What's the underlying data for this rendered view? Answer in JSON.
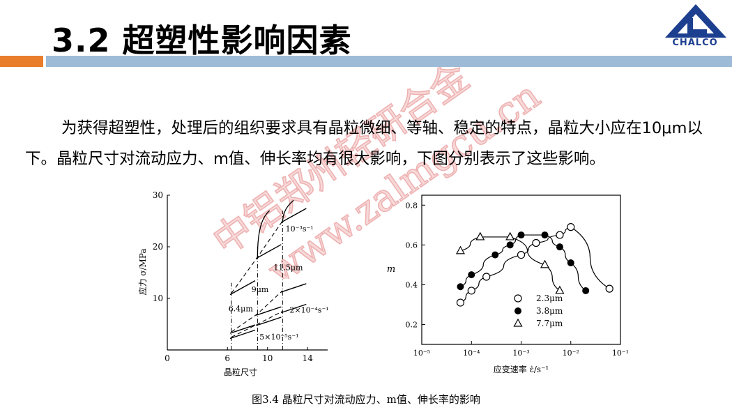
{
  "header": {
    "title": "3.2 超塑性影响因素",
    "logo_text": "CHALCO",
    "accent_orange": "#e87d2c",
    "accent_blue": "#9dbbd6"
  },
  "watermark": {
    "line1": "中铝郑州轻研合金",
    "line2": "www.zalmgcu.cn",
    "color": "#f0b4b4"
  },
  "body": {
    "paragraph": "为获得超塑性，处理后的组织要求具有晶粒微细、等轴、稳定的特点，晶粒大小应在10μm以下。晶粒尺寸对流动应力、m值、伸长率均有很大影响，下图分别表示了这些影响。"
  },
  "figure": {
    "caption": "图3.4 晶粒尺寸对流动应力、m值、伸长率的影响"
  },
  "chart_data": [
    {
      "type": "line",
      "xlabel": "晶粒尺寸",
      "ylabel": "应力 σ/MPa",
      "xlim": [
        0,
        16
      ],
      "ylim": [
        0,
        30
      ],
      "x_ticks": [
        "0",
        "6",
        "10",
        "14"
      ],
      "y_ticks": [
        "10",
        "20",
        "30"
      ],
      "grain_size_labels": [
        "6.4μm",
        "9μm",
        "11.5μm"
      ],
      "series": [
        {
          "name": "10⁻³s⁻¹",
          "x": [
            6.4,
            9,
            11.5
          ],
          "y": [
            11,
            18,
            25
          ]
        },
        {
          "name": "2×10⁻⁴s⁻¹",
          "x": [
            6.4,
            9,
            11.5
          ],
          "y": [
            3.5,
            7,
            11.5
          ]
        },
        {
          "name": "5×10⁻⁵s⁻¹",
          "x": [
            6.4,
            9,
            11.5
          ],
          "y": [
            2.5,
            5,
            7.5
          ]
        }
      ]
    },
    {
      "type": "scatter",
      "xlabel": "应变速率 ε̇/s⁻¹",
      "ylabel": "m",
      "x_scale": "log",
      "xlim": [
        1e-05,
        0.1
      ],
      "ylim": [
        0.1,
        0.85
      ],
      "x_ticks": [
        "10⁻⁵",
        "10⁻⁴",
        "10⁻³",
        "10⁻²",
        "10⁻¹"
      ],
      "y_ticks": [
        "0.2",
        "0.4",
        "0.6",
        "0.8"
      ],
      "series": [
        {
          "name": "2.3μm",
          "marker": "open-circle",
          "x": [
            6e-05,
            0.0001,
            0.0002,
            0.001,
            0.002,
            0.006,
            0.01,
            0.06
          ],
          "y": [
            0.31,
            0.37,
            0.44,
            0.55,
            0.61,
            0.65,
            0.69,
            0.38
          ]
        },
        {
          "name": "3.8μm",
          "marker": "filled-circle",
          "x": [
            6e-05,
            0.0001,
            0.0003,
            0.0006,
            0.001,
            0.003,
            0.006,
            0.01,
            0.02
          ],
          "y": [
            0.39,
            0.45,
            0.55,
            0.6,
            0.65,
            0.65,
            0.59,
            0.51,
            0.37
          ]
        },
        {
          "name": "7.7μm",
          "marker": "open-triangle",
          "x": [
            6e-05,
            0.00015,
            0.0006,
            0.003,
            0.006
          ],
          "y": [
            0.57,
            0.64,
            0.64,
            0.5,
            0.37
          ]
        }
      ]
    }
  ]
}
